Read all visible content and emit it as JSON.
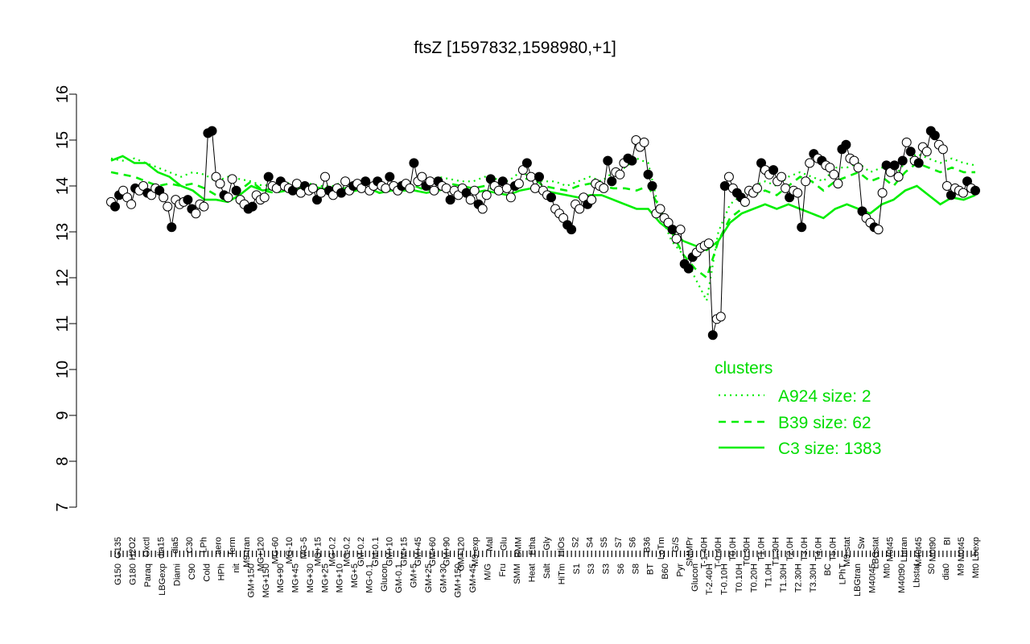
{
  "chart_data": {
    "type": "scatter",
    "title": "ftsZ [1597832,1598980,+1]",
    "xlabel": "",
    "ylabel": "",
    "ylim": [
      7,
      16
    ],
    "yticks": [
      7,
      8,
      9,
      10,
      11,
      12,
      13,
      14,
      15,
      16
    ],
    "grid": false,
    "x_tick_labels_row1": [
      "G135",
      "H2O2",
      "Oxctl",
      "dia15",
      "dia5",
      "C30",
      "LPh",
      "aero",
      "ferm",
      "M9-tran",
      "MG+120",
      "MG-60",
      "MG-10",
      "MG-5",
      "MG+15",
      "MG-0.2",
      "MG-0.2",
      "GM-0.2",
      "GM-0.1",
      "GM+10",
      "GM+15",
      "GM+45",
      "GM+60",
      "GM+90",
      "GM+120",
      "M9-exp",
      "Mal",
      "Glu",
      "BMM",
      "Etha",
      "Gly",
      "HiOs",
      "S2",
      "S4",
      "S5",
      "S7",
      "S6",
      "B36",
      "LoTm",
      "G/S",
      "SMMPr",
      "T-1.40H",
      "T-0.40H",
      "T0.0H",
      "T0.30H",
      "T1.0H",
      "T1.30H",
      "T2.0H",
      "T3.0H",
      "T4.0H",
      "T5.0H",
      "M9-stat",
      "Sw",
      "LBGstat",
      "M0t45",
      "Lbtran",
      "M40t45",
      "M0t90",
      "BI",
      "M0t45",
      "Lbexp"
    ],
    "x_tick_labels_row2": [
      "G150",
      "G180",
      "Paraq",
      "LBGexp",
      "Diami",
      "C90",
      "Cold",
      "HPh",
      "nit",
      "GM+150",
      "MG+150",
      "MG+90",
      "MG+45",
      "MG+30",
      "MG+25",
      "MG+10",
      "MG+5",
      "MG-0.1",
      "Glucon",
      "GM-0.1",
      "GM+5",
      "GM+25",
      "GM+30",
      "GM+150",
      "GM+45",
      "M/G",
      "Fru",
      "SMM",
      "Heat",
      "Salt",
      "HiTm",
      "S1",
      "S3",
      "S3",
      "S6",
      "S8",
      "BT",
      "B60",
      "Pyr",
      "Glucon",
      "T-2.40H",
      "T-0.10H",
      "T0.10H",
      "T0.20H",
      "T1.0H",
      "T1.30H",
      "T2.30H",
      "T3.30H",
      "BC",
      "LPhT",
      "LBGtran",
      "M40t45",
      "Mt0",
      "M40t90",
      "Lbstat",
      "S0",
      "dia0",
      "M9",
      "Mt0"
    ],
    "series": [
      {
        "name": "",
        "points": [
          [
            0,
            13.65
          ],
          [
            1,
            13.55
          ],
          [
            2,
            13.8
          ],
          [
            3,
            13.9
          ],
          [
            4,
            13.75
          ],
          [
            5,
            13.6
          ],
          [
            6,
            13.95
          ],
          [
            7,
            13.9
          ],
          [
            8,
            14.0
          ],
          [
            9,
            13.85
          ],
          [
            10,
            13.8
          ],
          [
            11,
            13.95
          ],
          [
            12,
            13.9
          ],
          [
            13,
            13.75
          ],
          [
            14,
            13.55
          ],
          [
            15,
            13.1
          ],
          [
            16,
            13.7
          ],
          [
            17,
            13.6
          ],
          [
            18,
            13.65
          ],
          [
            19,
            13.7
          ],
          [
            20,
            13.5
          ],
          [
            21,
            13.4
          ],
          [
            22,
            13.6
          ],
          [
            23,
            13.55
          ],
          [
            24,
            15.15
          ],
          [
            25,
            15.2
          ],
          [
            26,
            14.2
          ],
          [
            27,
            14.05
          ],
          [
            28,
            13.8
          ],
          [
            29,
            13.75
          ],
          [
            30,
            14.15
          ],
          [
            31,
            13.9
          ],
          [
            32,
            13.7
          ],
          [
            33,
            13.6
          ],
          [
            34,
            13.5
          ],
          [
            35,
            13.55
          ],
          [
            36,
            13.8
          ],
          [
            37,
            13.7
          ],
          [
            38,
            13.75
          ],
          [
            39,
            14.2
          ],
          [
            40,
            14.0
          ],
          [
            41,
            13.95
          ],
          [
            42,
            14.1
          ],
          [
            43,
            14.0
          ],
          [
            44,
            13.95
          ],
          [
            45,
            13.9
          ],
          [
            46,
            14.05
          ],
          [
            47,
            13.85
          ],
          [
            48,
            14.0
          ],
          [
            49,
            13.9
          ],
          [
            50,
            13.95
          ],
          [
            51,
            13.7
          ],
          [
            52,
            13.85
          ],
          [
            53,
            14.2
          ],
          [
            54,
            13.9
          ],
          [
            55,
            13.8
          ],
          [
            56,
            13.95
          ],
          [
            57,
            13.85
          ],
          [
            58,
            14.1
          ],
          [
            59,
            13.9
          ],
          [
            60,
            14.0
          ],
          [
            61,
            14.05
          ],
          [
            62,
            13.95
          ],
          [
            63,
            14.1
          ],
          [
            64,
            13.9
          ],
          [
            65,
            14.0
          ],
          [
            66,
            14.1
          ],
          [
            67,
            14.0
          ],
          [
            68,
            13.95
          ],
          [
            69,
            14.2
          ],
          [
            70,
            14.0
          ],
          [
            71,
            13.9
          ],
          [
            72,
            14.0
          ],
          [
            73,
            14.05
          ],
          [
            74,
            13.95
          ],
          [
            75,
            14.5
          ],
          [
            76,
            14.1
          ],
          [
            77,
            14.2
          ],
          [
            78,
            14.0
          ],
          [
            79,
            14.1
          ],
          [
            80,
            13.9
          ],
          [
            81,
            14.1
          ],
          [
            82,
            14.0
          ],
          [
            83,
            13.95
          ],
          [
            84,
            13.7
          ],
          [
            85,
            13.9
          ],
          [
            86,
            13.8
          ],
          [
            87,
            13.95
          ],
          [
            88,
            13.85
          ],
          [
            89,
            13.7
          ],
          [
            90,
            13.9
          ],
          [
            91,
            13.6
          ],
          [
            92,
            13.5
          ],
          [
            93,
            13.8
          ],
          [
            94,
            14.15
          ],
          [
            95,
            14.0
          ],
          [
            96,
            13.9
          ],
          [
            97,
            14.1
          ],
          [
            98,
            13.95
          ],
          [
            99,
            13.75
          ],
          [
            100,
            14.0
          ],
          [
            101,
            14.05
          ],
          [
            102,
            14.35
          ],
          [
            103,
            14.5
          ],
          [
            104,
            14.2
          ],
          [
            105,
            13.95
          ],
          [
            106,
            14.2
          ],
          [
            107,
            13.9
          ],
          [
            108,
            13.8
          ],
          [
            109,
            13.75
          ],
          [
            110,
            13.5
          ],
          [
            111,
            13.4
          ],
          [
            112,
            13.3
          ],
          [
            113,
            13.15
          ],
          [
            114,
            13.05
          ],
          [
            115,
            13.6
          ],
          [
            116,
            13.5
          ],
          [
            117,
            13.75
          ],
          [
            118,
            13.6
          ],
          [
            119,
            13.7
          ],
          [
            120,
            14.05
          ],
          [
            121,
            14.0
          ],
          [
            122,
            13.95
          ],
          [
            123,
            14.55
          ],
          [
            124,
            14.1
          ],
          [
            125,
            14.3
          ],
          [
            126,
            14.25
          ],
          [
            127,
            14.5
          ],
          [
            128,
            14.6
          ],
          [
            129,
            14.55
          ],
          [
            130,
            15.0
          ],
          [
            131,
            14.85
          ],
          [
            132,
            14.95
          ],
          [
            133,
            14.25
          ],
          [
            134,
            14.0
          ],
          [
            135,
            13.4
          ],
          [
            136,
            13.5
          ],
          [
            137,
            13.3
          ],
          [
            138,
            13.2
          ],
          [
            139,
            13.05
          ],
          [
            140,
            12.85
          ],
          [
            141,
            13.05
          ],
          [
            142,
            12.3
          ],
          [
            143,
            12.2
          ],
          [
            144,
            12.45
          ],
          [
            145,
            12.55
          ],
          [
            146,
            12.65
          ],
          [
            147,
            12.7
          ],
          [
            148,
            12.75
          ],
          [
            149,
            10.75
          ],
          [
            150,
            11.1
          ],
          [
            151,
            11.15
          ],
          [
            152,
            14.0
          ],
          [
            153,
            14.2
          ],
          [
            154,
            13.95
          ],
          [
            155,
            13.85
          ],
          [
            156,
            13.75
          ],
          [
            157,
            13.65
          ],
          [
            158,
            13.9
          ],
          [
            159,
            13.85
          ],
          [
            160,
            13.95
          ],
          [
            161,
            14.5
          ],
          [
            162,
            14.35
          ],
          [
            163,
            14.25
          ],
          [
            164,
            14.35
          ],
          [
            165,
            14.1
          ],
          [
            166,
            14.2
          ],
          [
            167,
            13.95
          ],
          [
            168,
            13.75
          ],
          [
            169,
            13.9
          ],
          [
            170,
            13.85
          ],
          [
            171,
            13.1
          ],
          [
            172,
            14.1
          ],
          [
            173,
            14.5
          ],
          [
            174,
            14.7
          ],
          [
            175,
            14.6
          ],
          [
            176,
            14.55
          ],
          [
            177,
            14.45
          ],
          [
            178,
            14.4
          ],
          [
            179,
            14.25
          ],
          [
            180,
            14.05
          ],
          [
            181,
            14.8
          ],
          [
            182,
            14.9
          ],
          [
            183,
            14.6
          ],
          [
            184,
            14.55
          ],
          [
            185,
            14.4
          ],
          [
            186,
            13.45
          ],
          [
            187,
            13.3
          ],
          [
            188,
            13.2
          ],
          [
            189,
            13.1
          ],
          [
            190,
            13.05
          ],
          [
            191,
            13.85
          ],
          [
            192,
            14.45
          ],
          [
            193,
            14.3
          ],
          [
            194,
            14.45
          ],
          [
            195,
            14.2
          ],
          [
            196,
            14.55
          ],
          [
            197,
            14.95
          ],
          [
            198,
            14.75
          ],
          [
            199,
            14.55
          ],
          [
            200,
            14.5
          ],
          [
            201,
            14.85
          ],
          [
            202,
            14.75
          ],
          [
            203,
            15.2
          ],
          [
            204,
            15.1
          ],
          [
            205,
            14.9
          ],
          [
            206,
            14.8
          ],
          [
            207,
            14.0
          ],
          [
            208,
            13.8
          ],
          [
            209,
            13.95
          ],
          [
            210,
            13.9
          ],
          [
            211,
            13.85
          ],
          [
            212,
            14.1
          ],
          [
            213,
            13.95
          ],
          [
            214,
            13.9
          ]
        ]
      }
    ],
    "filled_indices": [
      1,
      2,
      6,
      9,
      12,
      15,
      19,
      20,
      24,
      25,
      28,
      31,
      34,
      35,
      39,
      42,
      45,
      48,
      51,
      54,
      57,
      60,
      63,
      66,
      69,
      72,
      75,
      78,
      81,
      84,
      88,
      91,
      94,
      97,
      100,
      103,
      106,
      109,
      113,
      114,
      118,
      123,
      124,
      128,
      129,
      133,
      134,
      139,
      142,
      143,
      144,
      149,
      152,
      155,
      156,
      161,
      164,
      168,
      171,
      174,
      176,
      181,
      182,
      186,
      189,
      192,
      194,
      196,
      198,
      200,
      203,
      204,
      208,
      212,
      214
    ],
    "clusters": [
      {
        "name": "A924 size: 2",
        "style": "dotted",
        "values": [
          14.6,
          14.55,
          14.6,
          14.5,
          14.4,
          14.3,
          14.2,
          14.3,
          14.25,
          14.1,
          14.2,
          14.15,
          14.1,
          14.0,
          14.05,
          14.05,
          14.1,
          14.05,
          14.0,
          14.0,
          14.1,
          14.1,
          14.0,
          14.0,
          14.0,
          14.05,
          14.1,
          14.05,
          14.2,
          14.15,
          14.1,
          14.1,
          14.2,
          14.15,
          14.1,
          14.3,
          14.2,
          14.1,
          14.1,
          14.0,
          14.1,
          14.2,
          14.1,
          14.3,
          14.4,
          14.6,
          14.5,
          13.4,
          12.8,
          12.5,
          12.0,
          11.5,
          13.0,
          13.6,
          13.8,
          14.0,
          14.1,
          14.0,
          14.2,
          14.3,
          14.2,
          14.1,
          14.4,
          14.4,
          14.5,
          14.3,
          14.4,
          14.2,
          14.5,
          14.7,
          14.6,
          14.5,
          14.6,
          14.5,
          14.45
        ]
      },
      {
        "name": "B39 size: 62",
        "style": "dashed",
        "values": [
          14.3,
          14.25,
          14.2,
          14.1,
          14.0,
          14.05,
          14.0,
          14.05,
          13.95,
          13.8,
          13.8,
          13.9,
          14.1,
          13.9,
          13.85,
          13.9,
          14.0,
          13.95,
          13.9,
          13.9,
          13.95,
          14.0,
          13.9,
          13.85,
          13.95,
          13.95,
          14.0,
          13.9,
          14.0,
          14.05,
          14.0,
          13.95,
          14.0,
          13.9,
          13.95,
          14.1,
          14.2,
          14.0,
          13.95,
          13.9,
          14.0,
          14.05,
          14.0,
          13.95,
          13.95,
          13.9,
          14.0,
          13.5,
          13.0,
          12.5,
          12.2,
          12.0,
          12.8,
          13.3,
          13.5,
          13.8,
          13.9,
          13.8,
          14.0,
          14.2,
          14.1,
          13.9,
          14.1,
          14.2,
          14.3,
          14.1,
          14.2,
          14.0,
          14.3,
          14.5,
          14.4,
          14.3,
          14.4,
          14.3,
          14.3
        ]
      },
      {
        "name": "C3 size: 1383",
        "style": "solid",
        "values": [
          14.55,
          14.65,
          14.5,
          14.5,
          14.3,
          14.2,
          14.0,
          13.9,
          13.7,
          13.7,
          13.65,
          13.8,
          14.0,
          13.9,
          13.95,
          13.95,
          13.95,
          14.0,
          13.95,
          13.9,
          13.85,
          13.9,
          13.95,
          13.85,
          13.9,
          13.9,
          13.9,
          13.85,
          13.9,
          13.95,
          13.9,
          13.85,
          13.9,
          13.85,
          13.8,
          13.9,
          13.95,
          13.9,
          13.85,
          13.8,
          13.75,
          13.8,
          13.8,
          13.7,
          13.6,
          13.5,
          13.5,
          13.2,
          13.0,
          12.8,
          12.7,
          12.6,
          12.8,
          13.2,
          13.4,
          13.5,
          13.6,
          13.5,
          13.6,
          13.5,
          13.4,
          13.3,
          13.5,
          13.6,
          13.5,
          13.4,
          13.6,
          13.7,
          13.9,
          14.0,
          13.8,
          13.6,
          13.75,
          13.7,
          13.8
        ]
      }
    ],
    "legend": {
      "title": "clusters",
      "placement": "right-middle"
    },
    "colors": {
      "cluster_line": "#00ee00",
      "legend_text": "#00dd00",
      "points_fill": "#000000",
      "points_open": "#ffffff",
      "axes": "#000000"
    }
  }
}
